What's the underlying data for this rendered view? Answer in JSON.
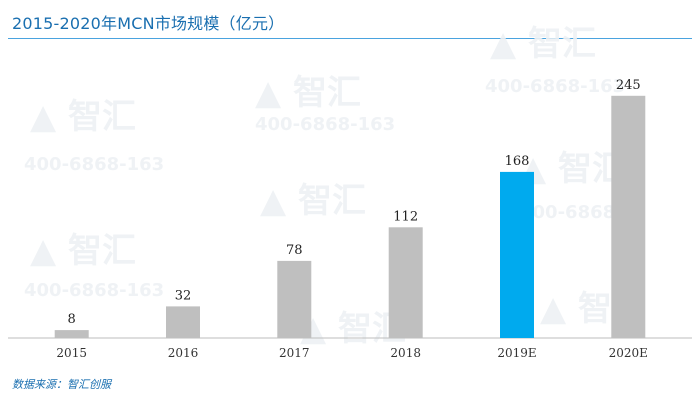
{
  "header": {
    "title": "2015-2020年MCN市场规模（亿元）"
  },
  "footer": {
    "source": "数据来源：智汇创服"
  },
  "colors": {
    "bar": "#bfbfbf",
    "highlight": "#00aaee",
    "title": "#1a6fb0"
  },
  "chart_data": {
    "type": "bar",
    "title": "2015-2020年MCN市场规模（亿元）",
    "categories": [
      "2015",
      "2016",
      "2017",
      "2018",
      "2019E",
      "2020E"
    ],
    "values": [
      8,
      32,
      78,
      112,
      168,
      245
    ],
    "highlight_index": 4,
    "ylim": [
      0,
      265
    ],
    "grid": false,
    "legend": "none"
  }
}
